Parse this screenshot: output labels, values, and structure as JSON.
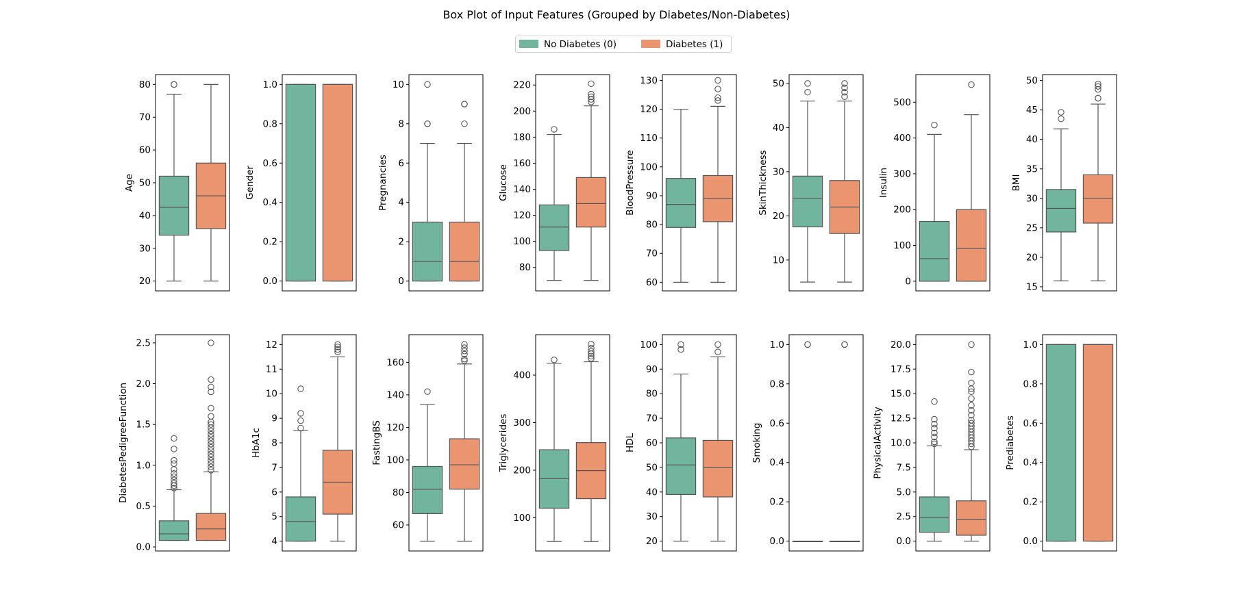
{
  "title": "Box Plot of Input Features (Grouped by Diabetes/Non-Diabetes)",
  "legend": [
    {
      "label": "No Diabetes (0)",
      "color": "#71b59f"
    },
    {
      "label": "Diabetes (1)",
      "color": "#ea9470"
    }
  ],
  "chart_data": {
    "type": "box",
    "groups": [
      "No Diabetes (0)",
      "Diabetes (1)"
    ],
    "legend_position": "top-center",
    "grid": false,
    "panels": [
      {
        "feature": "Age",
        "ylim": [
          17,
          83
        ],
        "ticks": [
          20,
          30,
          40,
          50,
          60,
          70,
          80
        ],
        "boxes": [
          {
            "min": 20,
            "q1": 34,
            "median": 42.5,
            "q3": 52,
            "max": 77,
            "outliers": [
              80,
              80
            ]
          },
          {
            "min": 20,
            "q1": 36,
            "median": 46,
            "q3": 56,
            "max": 80,
            "outliers": []
          }
        ]
      },
      {
        "feature": "Gender",
        "ylim": [
          -0.05,
          1.05
        ],
        "ticks": [
          0.0,
          0.2,
          0.4,
          0.6,
          0.8,
          1.0
        ],
        "boxes": [
          {
            "min": 0,
            "q1": 0,
            "median": 1,
            "q3": 1,
            "max": 1,
            "outliers": []
          },
          {
            "min": 0,
            "q1": 0,
            "median": 1,
            "q3": 1,
            "max": 1,
            "outliers": []
          }
        ]
      },
      {
        "feature": "Pregnancies",
        "ylim": [
          -0.5,
          10.5
        ],
        "ticks": [
          0,
          2,
          4,
          6,
          8,
          10
        ],
        "boxes": [
          {
            "min": 0,
            "q1": 0,
            "median": 1,
            "q3": 3,
            "max": 7,
            "outliers": [
              8,
              8,
              10
            ]
          },
          {
            "min": 0,
            "q1": 0,
            "median": 1,
            "q3": 3,
            "max": 7,
            "outliers": [
              8,
              9,
              9
            ]
          }
        ]
      },
      {
        "feature": "Glucose",
        "ylim": [
          62,
          228
        ],
        "ticks": [
          80,
          100,
          120,
          140,
          160,
          180,
          200,
          220
        ],
        "boxes": [
          {
            "min": 70,
            "q1": 93,
            "median": 111,
            "q3": 128,
            "max": 182,
            "outliers": [
              186
            ]
          },
          {
            "min": 70,
            "q1": 111,
            "median": 129,
            "q3": 149,
            "max": 204,
            "outliers": [
              207,
              209,
              211,
              213,
              221
            ]
          }
        ]
      },
      {
        "feature": "BloodPressure",
        "ylim": [
          57,
          132
        ],
        "ticks": [
          60,
          70,
          80,
          90,
          100,
          110,
          120,
          130
        ],
        "boxes": [
          {
            "min": 60,
            "q1": 79,
            "median": 87,
            "q3": 96,
            "max": 120,
            "outliers": []
          },
          {
            "min": 60,
            "q1": 81,
            "median": 89,
            "q3": 97,
            "max": 121,
            "outliers": [
              123,
              124,
              127,
              130
            ]
          }
        ]
      },
      {
        "feature": "SkinThickness",
        "ylim": [
          3,
          52
        ],
        "ticks": [
          10,
          20,
          30,
          40,
          50
        ],
        "boxes": [
          {
            "min": 5,
            "q1": 17.5,
            "median": 24,
            "q3": 29,
            "max": 46,
            "outliers": [
              48,
              50
            ]
          },
          {
            "min": 5,
            "q1": 16,
            "median": 22,
            "q3": 28,
            "max": 46,
            "outliers": [
              47,
              48,
              49,
              50
            ]
          }
        ]
      },
      {
        "feature": "Insulin",
        "ylim": [
          -27,
          577
        ],
        "ticks": [
          0,
          100,
          200,
          300,
          400,
          500
        ],
        "boxes": [
          {
            "min": 0,
            "q1": 0,
            "median": 63,
            "q3": 167,
            "max": 410,
            "outliers": [
              436
            ]
          },
          {
            "min": 0,
            "q1": 0,
            "median": 92,
            "q3": 200,
            "max": 465,
            "outliers": [
              549
            ]
          }
        ]
      },
      {
        "feature": "BMI",
        "ylim": [
          14.3,
          51.0
        ],
        "ticks": [
          15,
          20,
          25,
          30,
          35,
          40,
          45,
          50
        ],
        "boxes": [
          {
            "min": 16,
            "q1": 24.3,
            "median": 28.3,
            "q3": 31.5,
            "max": 41.8,
            "outliers": [
              43.5,
              44.6
            ]
          },
          {
            "min": 16,
            "q1": 25.8,
            "median": 30,
            "q3": 34,
            "max": 46,
            "outliers": [
              47,
              47,
              48.5,
              49,
              49.4
            ]
          }
        ]
      },
      {
        "feature": "DiabetesPedigreeFunction",
        "ylim": [
          -0.05,
          2.6
        ],
        "ticks": [
          0.0,
          0.5,
          1.0,
          1.5,
          2.0,
          2.5
        ],
        "boxes": [
          {
            "min": 0.08,
            "q1": 0.08,
            "median": 0.16,
            "q3": 0.32,
            "max": 0.7,
            "outliers": [
              0.72,
              0.75,
              0.78,
              0.82,
              0.86,
              0.9,
              0.95,
              1.02,
              1.06,
              1.2,
              1.33
            ]
          },
          {
            "min": 0.08,
            "q1": 0.08,
            "median": 0.22,
            "q3": 0.41,
            "max": 0.92,
            "outliers": [
              0.94,
              0.98,
              1.02,
              1.06,
              1.1,
              1.14,
              1.18,
              1.22,
              1.26,
              1.3,
              1.34,
              1.38,
              1.42,
              1.46,
              1.5,
              1.53,
              1.6,
              1.7,
              1.9,
              1.96,
              2.05,
              2.5
            ]
          }
        ]
      },
      {
        "feature": "HbA1c",
        "ylim": [
          3.6,
          12.4
        ],
        "ticks": [
          4,
          5,
          6,
          7,
          8,
          9,
          10,
          11,
          12
        ],
        "boxes": [
          {
            "min": 4,
            "q1": 4,
            "median": 4.8,
            "q3": 5.8,
            "max": 8.5,
            "outliers": [
              8.6,
              8.9,
              9.2,
              10.2
            ]
          },
          {
            "min": 4,
            "q1": 5.1,
            "median": 6.4,
            "q3": 7.7,
            "max": 11.5,
            "outliers": [
              11.7,
              11.8,
              11.9,
              12
            ]
          }
        ]
      },
      {
        "feature": "FastingBS",
        "ylim": [
          44,
          177
        ],
        "ticks": [
          60,
          80,
          100,
          120,
          140,
          160
        ],
        "boxes": [
          {
            "min": 50,
            "q1": 67,
            "median": 82,
            "q3": 96,
            "max": 134,
            "outliers": [
              142
            ]
          },
          {
            "min": 50,
            "q1": 82,
            "median": 97,
            "q3": 113,
            "max": 159,
            "outliers": [
              161,
              162,
              165,
              167,
              169,
              171
            ]
          }
        ]
      },
      {
        "feature": "Triglycerides",
        "ylim": [
          30,
          485
        ],
        "ticks": [
          100,
          200,
          300,
          400
        ],
        "boxes": [
          {
            "min": 50,
            "q1": 120,
            "median": 182,
            "q3": 243,
            "max": 425,
            "outliers": [
              432
            ]
          },
          {
            "min": 50,
            "q1": 140,
            "median": 199,
            "q3": 258,
            "max": 428,
            "outliers": [
              435,
              440,
              445,
              450,
              457,
              465
            ]
          }
        ]
      },
      {
        "feature": "HDL",
        "ylim": [
          16,
          104
        ],
        "ticks": [
          20,
          30,
          40,
          50,
          60,
          70,
          80,
          90,
          100
        ],
        "boxes": [
          {
            "min": 20,
            "q1": 39,
            "median": 51,
            "q3": 62,
            "max": 88,
            "outliers": [
              98,
              100
            ]
          },
          {
            "min": 20,
            "q1": 38,
            "median": 50,
            "q3": 61,
            "max": 95,
            "outliers": [
              97,
              100
            ]
          }
        ]
      },
      {
        "feature": "Smoking",
        "ylim": [
          -0.05,
          1.05
        ],
        "ticks": [
          0.0,
          0.2,
          0.4,
          0.6,
          0.8,
          1.0
        ],
        "boxes": [
          {
            "min": 0,
            "q1": 0,
            "median": 0,
            "q3": 0,
            "max": 0,
            "outliers": [
              1,
              1
            ]
          },
          {
            "min": 0,
            "q1": 0,
            "median": 0,
            "q3": 0,
            "max": 0,
            "outliers": [
              1,
              1
            ]
          }
        ]
      },
      {
        "feature": "PhysicalActivity",
        "ylim": [
          -1.0,
          21.0
        ],
        "ticks": [
          0.0,
          2.5,
          5.0,
          7.5,
          10.0,
          12.5,
          15.0,
          17.5,
          20.0
        ],
        "boxes": [
          {
            "min": 0,
            "q1": 0.9,
            "median": 2.4,
            "q3": 4.5,
            "max": 9.7,
            "outliers": [
              9.9,
              10.1,
              10.6,
              11.0,
              11.5,
              11.9,
              12.4,
              14.2
            ]
          },
          {
            "min": 0,
            "q1": 0.6,
            "median": 2.2,
            "q3": 4.1,
            "max": 9.3,
            "outliers": [
              9.6,
              9.9,
              10.2,
              10.5,
              10.8,
              11.1,
              11.4,
              11.7,
              12.0,
              12.3,
              12.8,
              13.3,
              13.8,
              14.5,
              15.2,
              15.5,
              16.1,
              17.2,
              20.0
            ]
          }
        ]
      },
      {
        "feature": "Prediabetes",
        "ylim": [
          -0.05,
          1.05
        ],
        "ticks": [
          0.0,
          0.2,
          0.4,
          0.6,
          0.8,
          1.0
        ],
        "boxes": [
          {
            "min": 0,
            "q1": 0,
            "median": 1,
            "q3": 1,
            "max": 1,
            "outliers": []
          },
          {
            "min": 0,
            "q1": 0,
            "median": 1,
            "q3": 1,
            "max": 1,
            "outliers": []
          }
        ]
      }
    ]
  }
}
